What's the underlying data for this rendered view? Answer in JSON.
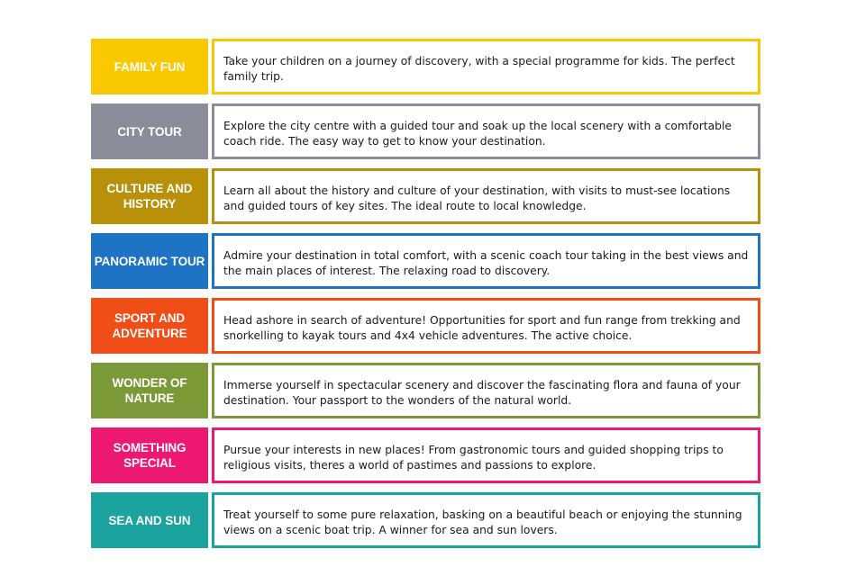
{
  "items": [
    {
      "label": "FAMILY FUN",
      "color": "#f9c800",
      "description": "Take your children on a journey of discovery, with a special programme for kids. The perfect family trip."
    },
    {
      "label": "CITY TOUR",
      "color": "#8a8c9a",
      "description": "Explore the city centre with a guided tour and soak up the local scenery with a comfortable coach ride. The easy way to get to know your destination."
    },
    {
      "label": "CULTURE AND HISTORY",
      "color": "#b8900a",
      "description": "Learn all about the history and culture of your destination, with visits to must-see locations and guided tours of key sites. The ideal route to local knowledge."
    },
    {
      "label": "PANORAMIC TOUR",
      "color": "#1f73c4",
      "description": "Admire your destination in total comfort, with a scenic coach tour taking in the best views and the main places of interest. The relaxing road to discovery."
    },
    {
      "label": "SPORT AND ADVENTURE",
      "color": "#f04e16",
      "description": "Head ashore in search of adventure! Opportunities for sport and fun range from trekking and snorkelling to kayak tours and 4x4 vehicle adventures. The active choice."
    },
    {
      "label": "WONDER OF NATURE",
      "color": "#7b9a37",
      "description": "Immerse yourself in spectacular scenery and discover the fascinating flora and fauna of your destination. Your passport to the wonders of the natural world."
    },
    {
      "label": "SOMETHING SPECIAL",
      "color": "#ec1872",
      "description": "Pursue your interests in new places! From gastronomic tours and guided shopping trips to religious visits, theres a world of pastimes and passions to explore."
    },
    {
      "label": "SEA AND SUN",
      "color": "#1aa39f",
      "description": "Treat yourself to some pure relaxation, basking on a beautiful beach or enjoying the stunning views on a scenic boat trip. A winner for sea and sun lovers."
    }
  ]
}
